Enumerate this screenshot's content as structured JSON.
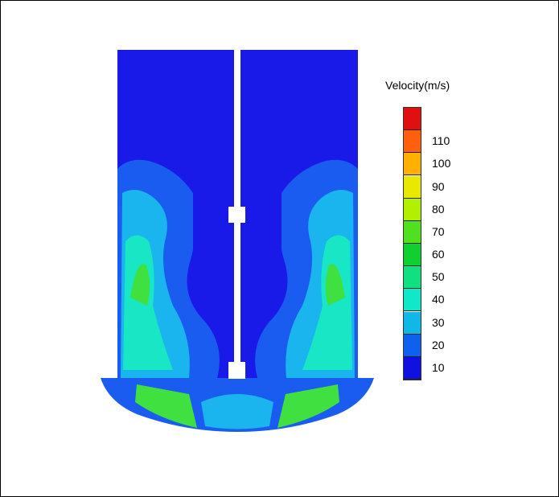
{
  "legend": {
    "title": "Velocity(m/s)",
    "levels": [
      {
        "label": "",
        "color": "#e01010"
      },
      {
        "label": "110",
        "color": "#ff6010"
      },
      {
        "label": "100",
        "color": "#ffb000"
      },
      {
        "label": "90",
        "color": "#e8e800"
      },
      {
        "label": "80",
        "color": "#b0f000"
      },
      {
        "label": "70",
        "color": "#50e020"
      },
      {
        "label": "60",
        "color": "#10d030"
      },
      {
        "label": "50",
        "color": "#10e080"
      },
      {
        "label": "40",
        "color": "#10e8c8"
      },
      {
        "label": "30",
        "color": "#10b8e8"
      },
      {
        "label": "20",
        "color": "#1060f0"
      },
      {
        "label": "10",
        "color": "#1010e0"
      }
    ]
  },
  "colors": {
    "background": "#1a1ae8",
    "low": "#1a5cf0",
    "mid": "#1ab4ee",
    "high": "#18e6c4",
    "peak": "#40e040"
  }
}
